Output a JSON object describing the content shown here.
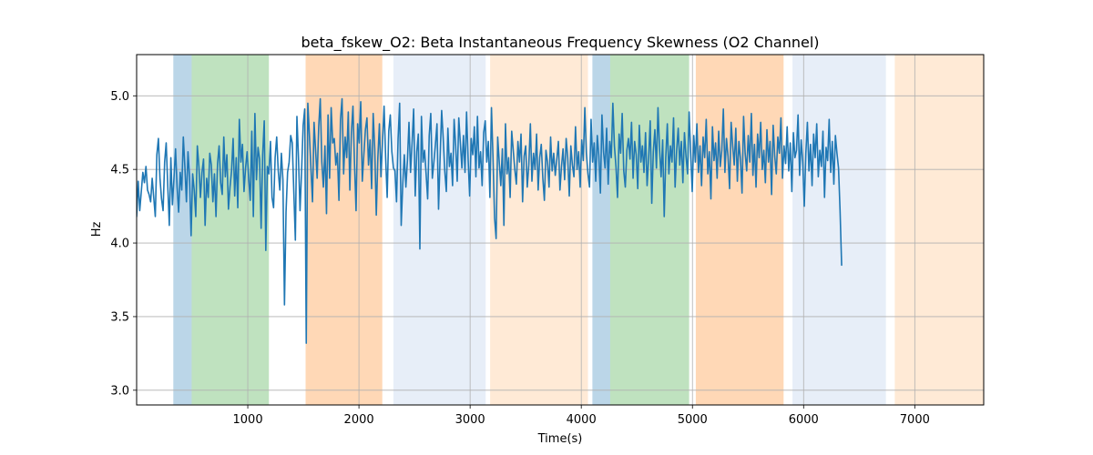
{
  "chart_data": {
    "type": "line",
    "title": "beta_fskew_O2: Beta Instantaneous Frequency Skewness (O2 Channel)",
    "xlabel": "Time(s)",
    "ylabel": "Hz",
    "xlim": [
      0,
      7620
    ],
    "ylim": [
      2.9,
      5.28
    ],
    "grid": true,
    "xticks": [
      1000,
      2000,
      3000,
      4000,
      5000,
      6000,
      7000
    ],
    "yticks": [
      3.0,
      3.5,
      4.0,
      4.5,
      5.0
    ],
    "line_color": "#1f77b4",
    "bands": [
      {
        "x0": 330,
        "x1": 495,
        "color": "#1f77b4",
        "opacity": 0.3
      },
      {
        "x0": 495,
        "x1": 1190,
        "color": "#2ca02c",
        "opacity": 0.3
      },
      {
        "x0": 1520,
        "x1": 2210,
        "color": "#ff7f0e",
        "opacity": 0.3
      },
      {
        "x0": 2310,
        "x1": 3140,
        "color": "#aec7e8",
        "opacity": 0.3
      },
      {
        "x0": 3180,
        "x1": 4060,
        "color": "#ffbb78",
        "opacity": 0.3
      },
      {
        "x0": 4100,
        "x1": 4260,
        "color": "#1f77b4",
        "opacity": 0.3
      },
      {
        "x0": 4260,
        "x1": 4970,
        "color": "#2ca02c",
        "opacity": 0.3
      },
      {
        "x0": 5030,
        "x1": 5820,
        "color": "#ff7f0e",
        "opacity": 0.3
      },
      {
        "x0": 5900,
        "x1": 6740,
        "color": "#aec7e8",
        "opacity": 0.3
      },
      {
        "x0": 6820,
        "x1": 7620,
        "color": "#ffbb78",
        "opacity": 0.3
      }
    ],
    "series": [
      {
        "name": "beta_fskew_O2",
        "x_start": 0,
        "x_step": 14,
        "values": [
          4.18,
          4.42,
          4.22,
          4.35,
          4.48,
          4.41,
          4.52,
          4.36,
          4.33,
          4.28,
          4.44,
          4.31,
          4.18,
          4.6,
          4.71,
          4.44,
          4.3,
          4.22,
          4.55,
          4.68,
          4.39,
          4.12,
          4.58,
          4.26,
          4.44,
          4.64,
          4.38,
          4.21,
          4.48,
          4.36,
          4.72,
          4.52,
          4.28,
          4.62,
          4.45,
          4.05,
          4.47,
          4.36,
          4.18,
          4.66,
          4.52,
          4.31,
          4.48,
          4.57,
          4.12,
          4.44,
          4.31,
          4.61,
          4.53,
          4.28,
          4.47,
          4.18,
          4.54,
          4.66,
          4.41,
          4.33,
          4.72,
          4.45,
          4.6,
          4.23,
          4.38,
          4.49,
          4.71,
          4.32,
          4.58,
          4.24,
          4.84,
          4.55,
          4.67,
          4.35,
          4.51,
          4.62,
          4.44,
          4.29,
          4.76,
          4.18,
          4.88,
          4.43,
          4.65,
          4.57,
          4.1,
          4.6,
          4.83,
          3.95,
          4.52,
          4.47,
          4.69,
          4.31,
          4.24,
          4.58,
          4.72,
          4.49,
          4.36,
          4.61,
          4.43,
          3.58,
          4.21,
          4.48,
          4.55,
          4.73,
          4.68,
          4.35,
          4.02,
          4.86,
          4.58,
          4.22,
          4.49,
          4.8,
          4.91,
          3.32,
          4.95,
          4.74,
          4.51,
          4.28,
          4.82,
          4.63,
          4.44,
          4.79,
          4.98,
          4.55,
          4.38,
          4.66,
          4.2,
          4.87,
          4.44,
          4.92,
          4.68,
          4.71,
          4.53,
          4.61,
          4.29,
          4.84,
          4.98,
          4.47,
          4.72,
          4.58,
          4.89,
          4.36,
          4.75,
          4.93,
          4.54,
          4.22,
          4.81,
          4.68,
          4.96,
          4.42,
          4.6,
          4.77,
          4.85,
          4.53,
          4.7,
          4.37,
          4.88,
          4.64,
          4.19,
          4.58,
          4.81,
          4.45,
          4.69,
          4.93,
          4.58,
          4.31,
          4.76,
          4.87,
          4.62,
          4.51,
          4.49,
          4.28,
          4.71,
          4.95,
          4.12,
          4.4,
          4.6,
          4.38,
          4.56,
          4.82,
          4.48,
          4.68,
          4.91,
          4.32,
          4.62,
          4.74,
          3.96,
          4.86,
          4.55,
          4.63,
          4.47,
          4.3,
          4.73,
          4.88,
          4.44,
          4.55,
          4.67,
          4.81,
          4.23,
          4.58,
          4.9,
          4.71,
          4.49,
          4.35,
          4.78,
          4.52,
          4.61,
          4.39,
          4.84,
          4.66,
          4.42,
          4.85,
          4.68,
          4.51,
          4.73,
          4.48,
          4.89,
          4.57,
          4.32,
          4.71,
          4.6,
          4.79,
          4.45,
          4.86,
          4.51,
          4.62,
          4.39,
          4.75,
          4.83,
          4.55,
          4.69,
          4.31,
          4.92,
          4.58,
          4.17,
          4.03,
          4.72,
          4.55,
          4.39,
          4.64,
          4.12,
          4.81,
          4.47,
          4.58,
          4.31,
          4.76,
          4.63,
          4.5,
          4.4,
          4.69,
          4.55,
          4.74,
          4.28,
          4.59,
          4.66,
          4.38,
          4.53,
          4.81,
          4.42,
          4.61,
          4.5,
          4.74,
          4.36,
          4.58,
          4.67,
          4.44,
          4.29,
          4.63,
          4.55,
          4.38,
          4.72,
          4.49,
          4.61,
          4.46,
          4.57,
          4.69,
          4.36,
          4.52,
          4.64,
          4.43,
          4.71,
          4.58,
          4.32,
          4.66,
          4.53,
          4.45,
          4.79,
          4.5,
          4.62,
          4.38,
          4.7,
          4.56,
          4.92,
          4.61,
          4.47,
          4.38,
          4.84,
          4.55,
          4.68,
          4.42,
          4.73,
          4.59,
          4.34,
          4.87,
          4.62,
          4.51,
          4.78,
          4.4,
          4.69,
          4.58,
          4.95,
          4.66,
          4.52,
          4.31,
          4.74,
          4.61,
          4.88,
          4.49,
          4.38,
          4.63,
          4.71,
          4.57,
          4.82,
          4.44,
          4.69,
          4.6,
          4.37,
          4.8,
          4.55,
          4.66,
          4.48,
          4.75,
          4.39,
          4.58,
          4.83,
          4.27,
          4.62,
          4.77,
          4.51,
          4.92,
          4.64,
          4.45,
          4.7,
          4.18,
          4.58,
          4.81,
          4.47,
          4.66,
          4.55,
          4.85,
          4.38,
          4.63,
          4.78,
          4.53,
          4.69,
          4.41,
          4.75,
          4.59,
          4.47,
          4.89,
          4.61,
          4.35,
          4.73,
          4.55,
          4.81,
          4.48,
          4.66,
          4.39,
          4.72,
          4.58,
          4.84,
          4.47,
          4.62,
          4.3,
          4.79,
          4.56,
          4.68,
          4.44,
          4.76,
          4.52,
          4.63,
          4.91,
          4.48,
          4.71,
          4.59,
          4.37,
          4.82,
          4.66,
          4.53,
          4.78,
          4.42,
          4.69,
          4.57,
          4.34,
          4.86,
          4.61,
          4.49,
          4.73,
          4.55,
          4.88,
          4.46,
          4.67,
          4.38,
          4.74,
          4.58,
          4.82,
          4.5,
          4.63,
          4.41,
          4.77,
          4.55,
          4.69,
          4.33,
          4.8,
          4.59,
          4.47,
          4.72,
          4.61,
          4.85,
          4.44,
          4.66,
          4.54,
          4.79,
          4.49,
          4.68,
          4.35,
          4.75,
          4.58,
          4.63,
          4.87,
          4.46,
          4.7,
          4.55,
          4.25,
          4.61,
          4.82,
          4.49,
          4.67,
          4.39,
          4.74,
          4.58,
          4.81,
          4.45,
          4.63,
          4.52,
          4.76,
          4.31,
          4.65,
          4.56,
          4.84,
          4.48,
          4.69,
          4.4,
          4.73,
          4.61,
          4.51,
          4.22,
          3.85
        ]
      }
    ]
  }
}
